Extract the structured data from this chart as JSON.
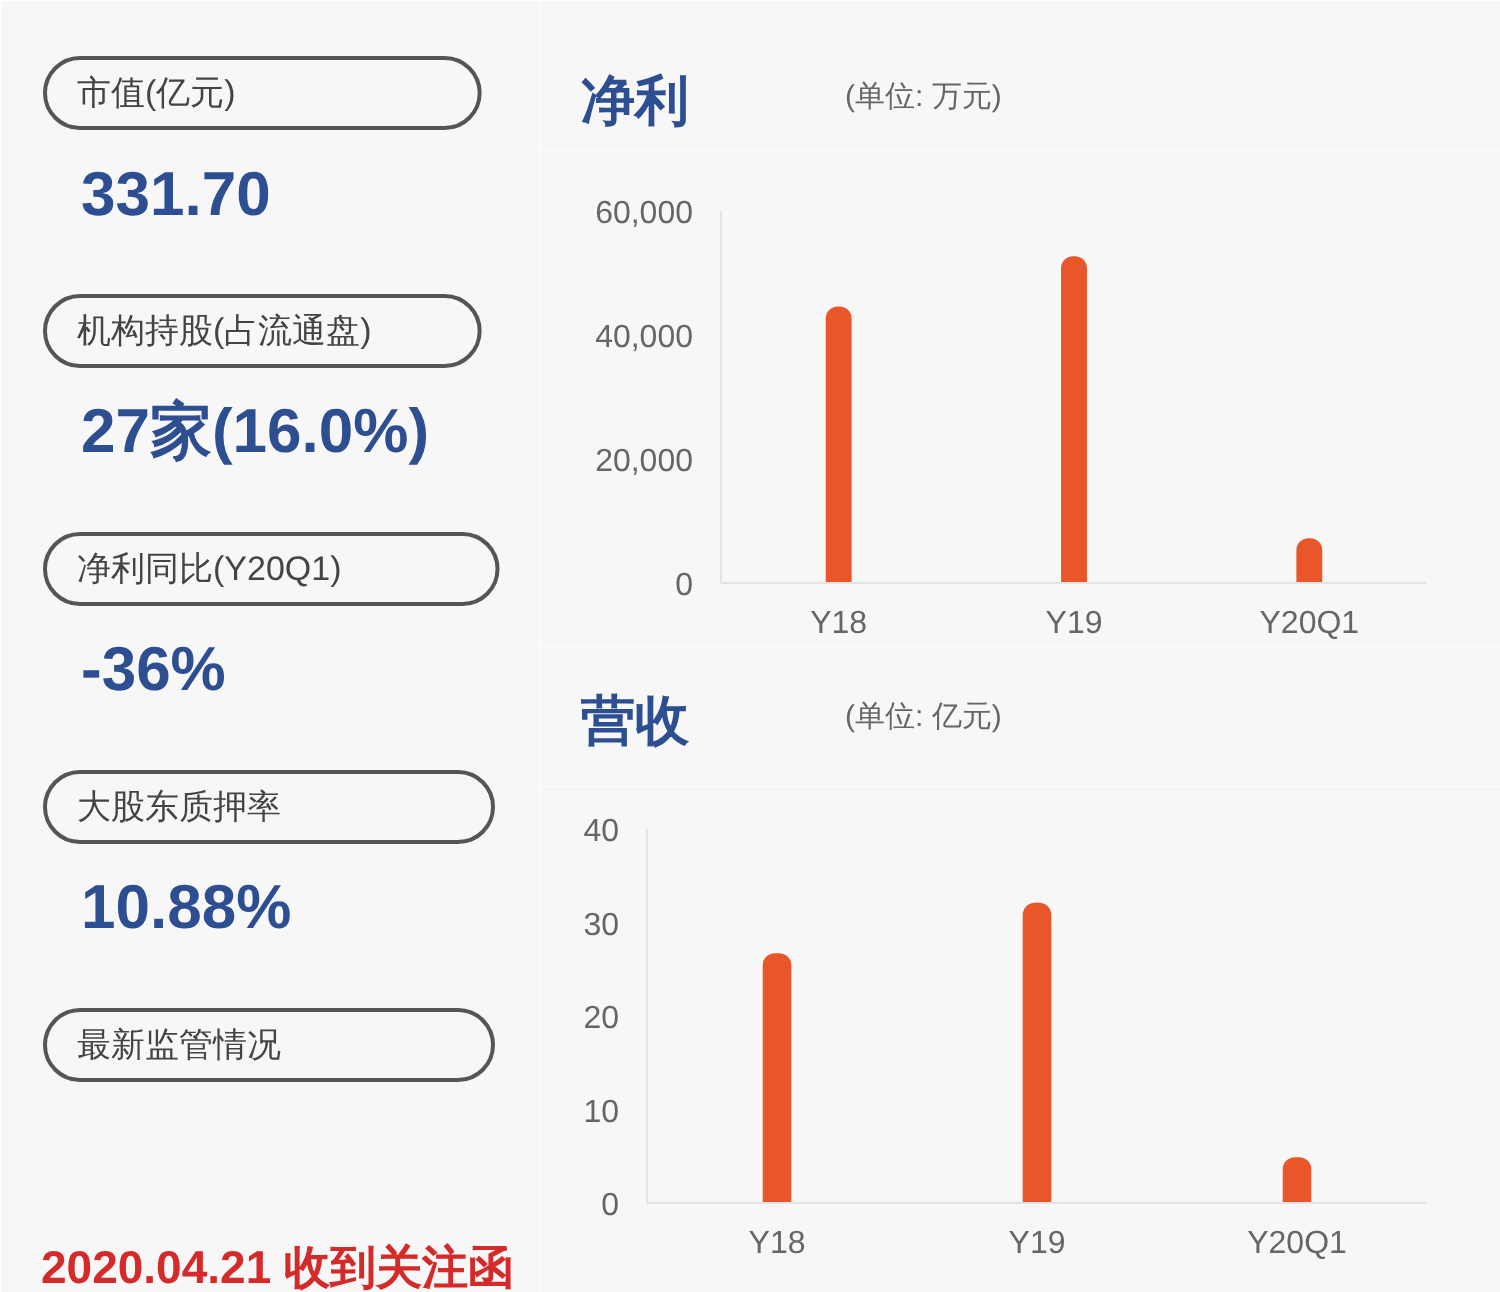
{
  "chart_data": [
    {
      "type": "other",
      "annotations": [
        "市值(亿元)",
        "331.70",
        "机构持股(占流通盘)",
        "27家(16.0%)",
        "净利同比(Y20Q1)",
        "-36%",
        "大股东质押率",
        "10.88%",
        "最新监管情况",
        "2020.04.21 收到关注函"
      ]
    },
    {
      "type": "bar",
      "title": "净利",
      "subtitle": "(单位: 万元)",
      "categories": [
        "Y18",
        "Y19",
        "Y20Q1"
      ],
      "values": [
        44600,
        52700,
        7200
      ],
      "color": "#e8562a",
      "ylim": [
        0,
        60000
      ],
      "yticks": [
        0,
        {
          "value": 20000,
          "label": "20,000"
        },
        {
          "value": 40000,
          "label": "40,000"
        },
        {
          "value": 60000,
          "label": "60,000"
        }
      ]
    },
    {
      "type": "bar",
      "title": "营收",
      "subtitle": "(单位: 亿元)",
      "categories": [
        "Y18",
        "Y19",
        "Y20Q1"
      ],
      "values": [
        26.7,
        32.1,
        4.9
      ],
      "color": "#e8562a",
      "ylim": [
        0,
        40
      ],
      "yticks": [
        0,
        10,
        20,
        30,
        40
      ]
    }
  ]
}
